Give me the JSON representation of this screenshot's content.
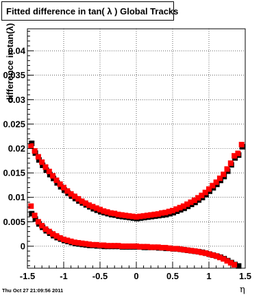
{
  "chart_data": {
    "type": "scatter",
    "title": "Fitted difference in tan( λ )  Global Tracks",
    "xlabel": "η",
    "ylabel": "difference in tan(λ)",
    "xlim": [
      -1.5,
      1.5
    ],
    "ylim": [
      -0.0045,
      0.0445
    ],
    "xticks": [
      "-1.5",
      "-1",
      "-0.5",
      "0",
      "0.5",
      "1",
      "1.5"
    ],
    "yticks": [
      "0",
      "0.005",
      "0.01",
      "0.015",
      "0.02",
      "0.025",
      "0.03",
      "0.035",
      "0.04"
    ],
    "grid": true,
    "series": [
      {
        "color": "#000000",
        "x": [
          -1.45,
          -1.4,
          -1.35,
          -1.3,
          -1.25,
          -1.2,
          -1.15,
          -1.1,
          -1.05,
          -1.0,
          -0.95,
          -0.9,
          -0.85,
          -0.8,
          -0.75,
          -0.7,
          -0.65,
          -0.6,
          -0.55,
          -0.5,
          -0.45,
          -0.4,
          -0.35,
          -0.3,
          -0.25,
          -0.2,
          -0.15,
          -0.1,
          -0.05,
          0.0,
          0.05,
          0.1,
          0.15,
          0.2,
          0.25,
          0.3,
          0.35,
          0.4,
          0.45,
          0.5,
          0.55,
          0.6,
          0.65,
          0.7,
          0.75,
          0.8,
          0.85,
          0.9,
          0.95,
          1.0,
          1.05,
          1.1,
          1.15,
          1.2,
          1.25,
          1.3,
          1.35,
          1.4,
          1.45
        ],
        "y": [
          0.0212,
          0.0192,
          0.0178,
          0.0167,
          0.0157,
          0.0148,
          0.014,
          0.0131,
          0.0123,
          0.0116,
          0.011,
          0.0104,
          0.0099,
          0.0094,
          0.009,
          0.0086,
          0.0082,
          0.0078,
          0.0075,
          0.0072,
          0.007,
          0.0068,
          0.0066,
          0.0065,
          0.0063,
          0.0062,
          0.0061,
          0.006,
          0.0059,
          0.0058,
          0.0059,
          0.006,
          0.0061,
          0.0062,
          0.0063,
          0.0064,
          0.0065,
          0.0066,
          0.0068,
          0.007,
          0.0073,
          0.0076,
          0.0079,
          0.0083,
          0.0087,
          0.0091,
          0.0096,
          0.0101,
          0.0107,
          0.0114,
          0.0121,
          0.0128,
          0.0136,
          0.0144,
          0.0155,
          0.0168,
          0.0182,
          0.0188,
          0.0205
        ]
      },
      {
        "color": "#ff0000",
        "x": [
          -1.45,
          -1.4,
          -1.35,
          -1.3,
          -1.25,
          -1.2,
          -1.15,
          -1.1,
          -1.05,
          -1.0,
          -0.95,
          -0.9,
          -0.85,
          -0.8,
          -0.75,
          -0.7,
          -0.65,
          -0.6,
          -0.55,
          -0.5,
          -0.45,
          -0.4,
          -0.35,
          -0.3,
          -0.25,
          -0.2,
          -0.15,
          -0.1,
          -0.05,
          0.0,
          0.05,
          0.1,
          0.15,
          0.2,
          0.25,
          0.3,
          0.35,
          0.4,
          0.45,
          0.5,
          0.55,
          0.6,
          0.65,
          0.7,
          0.75,
          0.8,
          0.85,
          0.9,
          0.95,
          1.0,
          1.05,
          1.1,
          1.15,
          1.2,
          1.25,
          1.3,
          1.35,
          1.4,
          1.45
        ],
        "y": [
          0.0205,
          0.0195,
          0.0183,
          0.0172,
          0.0162,
          0.0153,
          0.0144,
          0.0135,
          0.0127,
          0.012,
          0.0113,
          0.0107,
          0.0102,
          0.0097,
          0.0092,
          0.0088,
          0.0084,
          0.0081,
          0.0078,
          0.0075,
          0.0072,
          0.007,
          0.0068,
          0.0067,
          0.0065,
          0.0064,
          0.0063,
          0.0062,
          0.0061,
          0.006,
          0.0061,
          0.0062,
          0.0063,
          0.0064,
          0.0065,
          0.0066,
          0.0068,
          0.0069,
          0.0071,
          0.0073,
          0.0076,
          0.0079,
          0.0082,
          0.0086,
          0.009,
          0.0094,
          0.0099,
          0.0104,
          0.011,
          0.0117,
          0.0124,
          0.0131,
          0.0139,
          0.0147,
          0.0158,
          0.017,
          0.0185,
          0.019,
          0.0208
        ]
      },
      {
        "color": "#000000",
        "x": [
          -1.45,
          -1.4,
          -1.35,
          -1.3,
          -1.25,
          -1.2,
          -1.15,
          -1.1,
          -1.05,
          -1.0,
          -0.95,
          -0.9,
          -0.85,
          -0.8,
          -0.75,
          -0.7,
          -0.65,
          -0.6,
          -0.55,
          -0.5,
          -0.45,
          -0.4,
          -0.35,
          -0.3,
          -0.25,
          -0.2,
          -0.15,
          -0.1,
          -0.05,
          0.0,
          0.05,
          0.1,
          0.15,
          0.2,
          0.25,
          0.3,
          0.35,
          0.4,
          0.45,
          0.5,
          0.55,
          0.6,
          0.65,
          0.7,
          0.75,
          0.8,
          0.85,
          0.9,
          0.95,
          1.0,
          1.05,
          1.1,
          1.15,
          1.2,
          1.25,
          1.3,
          1.35,
          1.4
        ],
        "y": [
          0.0068,
          0.0057,
          0.0047,
          0.004,
          0.0033,
          0.0028,
          0.0023,
          0.0019,
          0.0016,
          0.0013,
          0.0011,
          0.0009,
          0.0007,
          0.0006,
          0.0005,
          0.0004,
          0.0003,
          0.0003,
          0.0002,
          0.0002,
          0.0001,
          0.0001,
          0.0001,
          0.0001,
          0.0001,
          0.0,
          0.0,
          0.0,
          0.0,
          0.0,
          0.0,
          -0.0001,
          -0.0001,
          -0.0001,
          -0.0001,
          -0.0002,
          -0.0002,
          -0.0003,
          -0.0003,
          -0.0004,
          -0.0004,
          -0.0005,
          -0.0006,
          -0.0007,
          -0.0008,
          -0.0009,
          -0.001,
          -0.0011,
          -0.0013,
          -0.0015,
          -0.0017,
          -0.0019,
          -0.0021,
          -0.0024,
          -0.0028,
          -0.0032,
          -0.0036,
          -0.0039
        ]
      },
      {
        "color": "#ff0000",
        "x": [
          -1.45,
          -1.4,
          -1.35,
          -1.3,
          -1.25,
          -1.2,
          -1.15,
          -1.1,
          -1.05,
          -1.0,
          -0.95,
          -0.9,
          -0.85,
          -0.8,
          -0.75,
          -0.7,
          -0.65,
          -0.6,
          -0.55,
          -0.5,
          -0.45,
          -0.4,
          -0.35,
          -0.3,
          -0.25,
          -0.2,
          -0.15,
          -0.1,
          -0.05,
          0.0,
          0.05,
          0.1,
          0.15,
          0.2,
          0.25,
          0.3,
          0.35,
          0.4,
          0.45,
          0.5,
          0.55,
          0.6,
          0.65,
          0.7,
          0.75,
          0.8,
          0.85,
          0.9,
          0.95,
          1.0,
          1.05,
          1.1,
          1.15,
          1.2,
          1.25,
          1.3,
          1.35
        ],
        "y": [
          0.0082,
          0.0063,
          0.005,
          0.0042,
          0.0035,
          0.003,
          0.0025,
          0.0021,
          0.0017,
          0.0014,
          0.0012,
          0.001,
          0.0008,
          0.0007,
          0.0006,
          0.0005,
          0.0004,
          0.0003,
          0.0003,
          0.0002,
          0.0002,
          0.0001,
          0.0001,
          0.0001,
          0.0001,
          0.0,
          0.0,
          0.0,
          0.0,
          0.0,
          -0.0001,
          -0.0001,
          -0.0001,
          -0.0002,
          -0.0002,
          -0.0002,
          -0.0003,
          -0.0003,
          -0.0004,
          -0.0005,
          -0.0005,
          -0.0006,
          -0.0007,
          -0.0008,
          -0.0009,
          -0.001,
          -0.0011,
          -0.0013,
          -0.0014,
          -0.0016,
          -0.0018,
          -0.002,
          -0.0023,
          -0.0026,
          -0.003,
          -0.0034,
          -0.0038
        ]
      }
    ]
  },
  "footer_timestamp": "Thu Oct 27 21:09:56 2011"
}
